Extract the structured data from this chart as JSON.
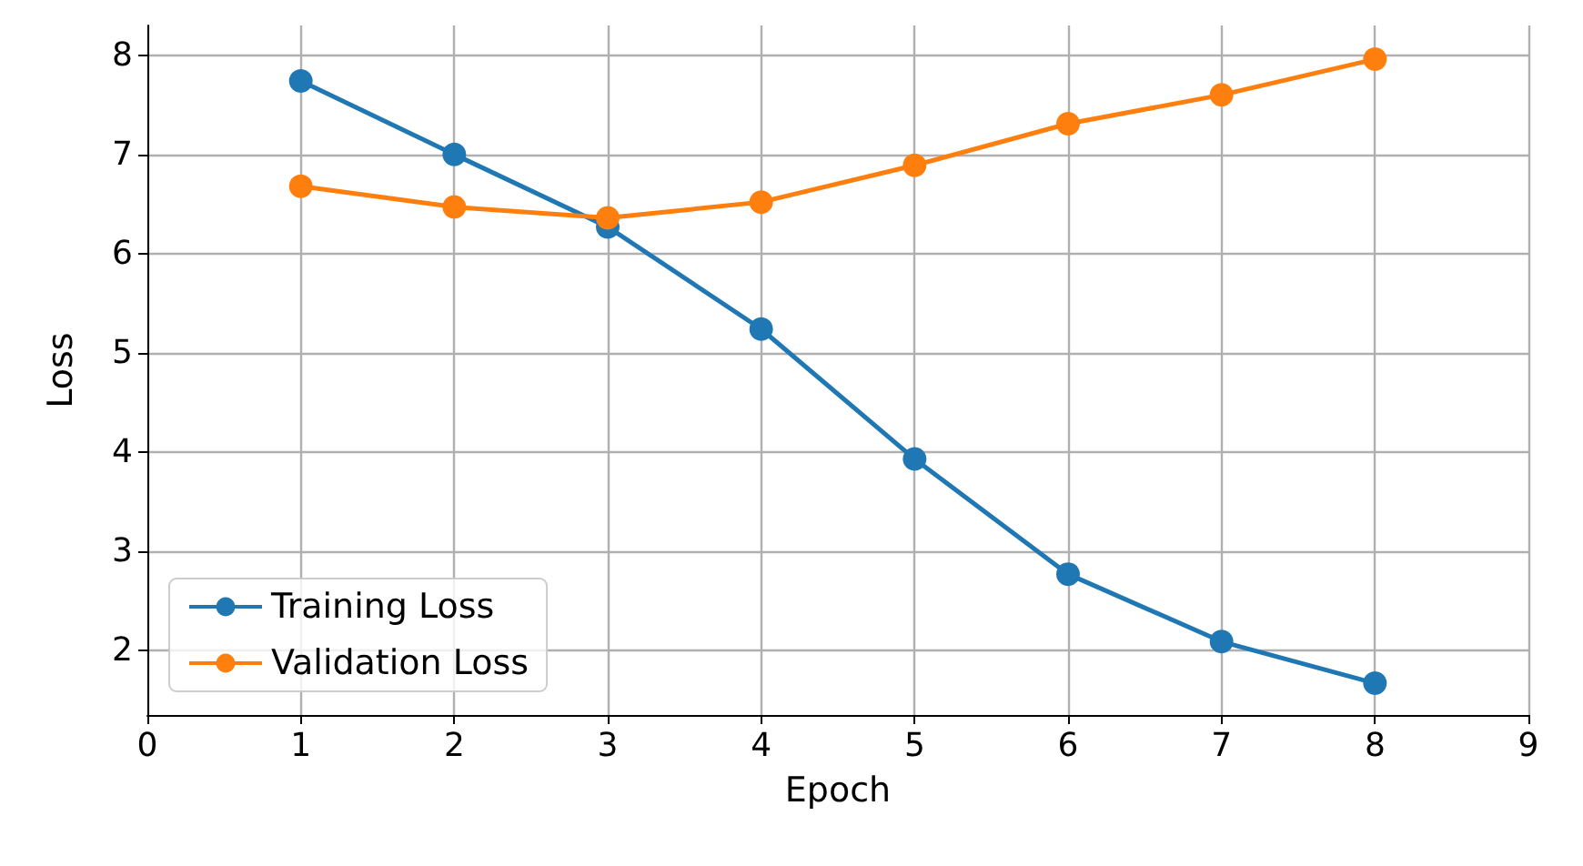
{
  "chart_data": {
    "type": "line",
    "xlabel": "Epoch",
    "ylabel": "Loss",
    "x": [
      1,
      2,
      3,
      4,
      5,
      6,
      7,
      8
    ],
    "series": [
      {
        "name": "Training Loss",
        "color": "#1f77b4",
        "values": [
          7.74,
          7.0,
          6.27,
          5.24,
          3.93,
          2.77,
          2.09,
          1.67
        ]
      },
      {
        "name": "Validation Loss",
        "color": "#ff7f0e",
        "values": [
          6.68,
          6.47,
          6.36,
          6.52,
          6.89,
          7.31,
          7.6,
          7.96
        ]
      }
    ],
    "xlim": [
      0,
      9
    ],
    "xticks": [
      0,
      1,
      2,
      3,
      4,
      5,
      6,
      7,
      8,
      9
    ],
    "ylim": [
      1.35,
      8.3
    ],
    "yticks": [
      2,
      3,
      4,
      5,
      6,
      7,
      8
    ],
    "grid": true,
    "legend": "bottom left",
    "marker": "circle",
    "line_style": "solid"
  }
}
